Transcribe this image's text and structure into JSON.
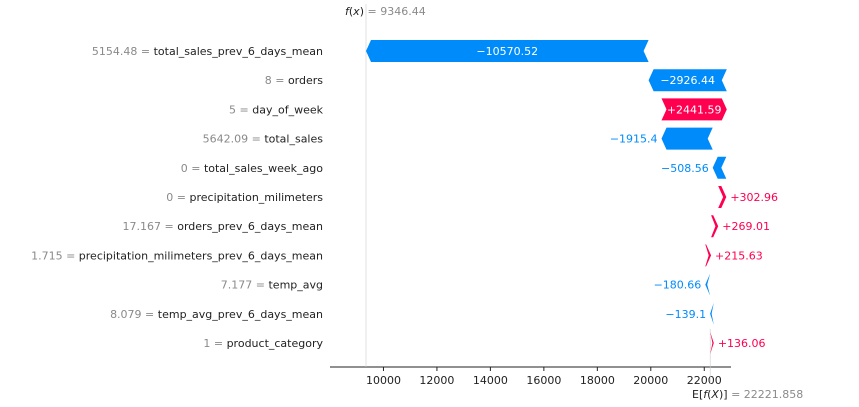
{
  "chart_data": {
    "type": "waterfall",
    "fx_label": "f(x)",
    "fx_value": "9346.44",
    "ex_label": "E[f(X)]",
    "ex_value": "22221.858",
    "base_value": 22221.858,
    "xlim": [
      8000,
      23000
    ],
    "xticks": [
      10000,
      12000,
      14000,
      16000,
      18000,
      20000,
      22000
    ],
    "xtick_labels": [
      "10000",
      "12000",
      "14000",
      "16000",
      "18000",
      "20000",
      "22000"
    ],
    "features": [
      {
        "value": "5154.48",
        "name": "total_sales_prev_6_days_mean",
        "contribution": -10570.52,
        "label": "−10570.52"
      },
      {
        "value": "8",
        "name": "orders",
        "contribution": -2926.44,
        "label": "−2926.44"
      },
      {
        "value": "5",
        "name": "day_of_week",
        "contribution": 2441.59,
        "label": "+2441.59"
      },
      {
        "value": "5642.09",
        "name": "total_sales",
        "contribution": -1915.4,
        "label": "−1915.4"
      },
      {
        "value": "0",
        "name": "total_sales_week_ago",
        "contribution": -508.56,
        "label": "−508.56"
      },
      {
        "value": "0",
        "name": "precipitation_milimeters",
        "contribution": 302.96,
        "label": "+302.96"
      },
      {
        "value": "17.167",
        "name": "orders_prev_6_days_mean",
        "contribution": 269.01,
        "label": "+269.01"
      },
      {
        "value": "1.715",
        "name": "precipitation_milimeters_prev_6_days_mean",
        "contribution": 215.63,
        "label": "+215.63"
      },
      {
        "value": "7.177",
        "name": "temp_avg",
        "contribution": -180.66,
        "label": "−180.66"
      },
      {
        "value": "8.079",
        "name": "temp_avg_prev_6_days_mean",
        "contribution": -139.1,
        "label": "−139.1"
      },
      {
        "value": "1",
        "name": "product_category",
        "contribution": 136.06,
        "label": "+136.06"
      }
    ],
    "colors": {
      "positive": "#ff0051",
      "negative": "#008bfb",
      "axis": "#222222",
      "guide": "#cccccc",
      "muted": "#8a8a8a"
    }
  }
}
